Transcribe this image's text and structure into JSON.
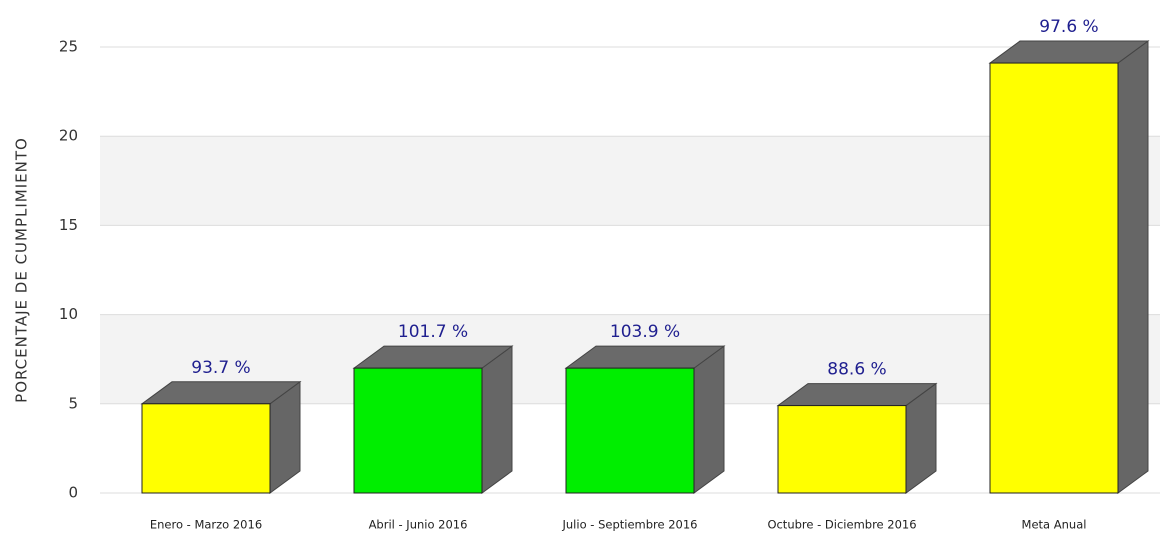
{
  "chart_data": {
    "type": "bar3d",
    "ylabel": "PORCENTAJE DE CUMPLIMIENTO",
    "categories": [
      "Enero - Marzo  2016",
      "Abril - Junio  2016",
      "Julio - Septiembre  2016",
      "Octubre - Diciembre  2016",
      "Meta Anual"
    ],
    "values": [
      5.0,
      7.0,
      7.0,
      4.9,
      24.1
    ],
    "colors": [
      "#ffff00",
      "#00ee00",
      "#00ee00",
      "#ffff00",
      "#ffff00"
    ],
    "annotations": [
      "93.7 %",
      "101.7 %",
      "103.9 %",
      "88.6 %",
      "97.6 %"
    ],
    "ylim": [
      0,
      25
    ],
    "yticks": [
      0,
      5,
      10,
      15,
      20,
      25
    ],
    "grid": true
  }
}
